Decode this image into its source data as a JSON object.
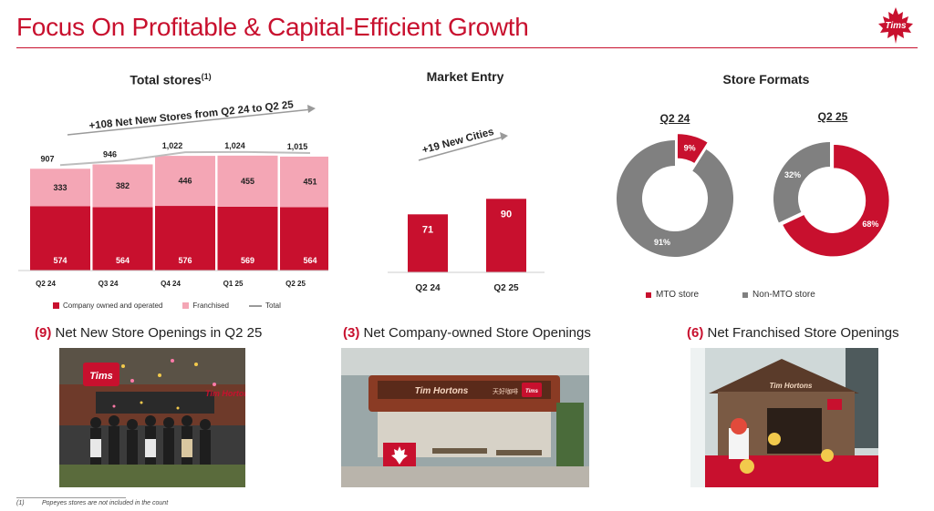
{
  "header": {
    "title": "Focus On Profitable & Capital-Efficient Growth",
    "logo_text": "Tims"
  },
  "colors": {
    "accent": "#c8102e",
    "franchised": "#f4a6b5",
    "non_mto": "#808080",
    "total_line": "#bdbdbd"
  },
  "total_stores": {
    "title": "Total stores",
    "footnote_marker": "(1)",
    "annotation": "+108 Net New Stores from Q2 24 to Q2 25",
    "legend": {
      "company": "Company owned and operated",
      "franchised": "Franchised",
      "total": "Total"
    }
  },
  "market_entry": {
    "title": "Market Entry",
    "annotation": "+19 New Cities"
  },
  "store_formats": {
    "title": "Store Formats",
    "left_label": "Q2 24",
    "right_label": "Q2 25",
    "left_mto": "9%",
    "left_non_mto": "91%",
    "right_mto": "68%",
    "right_non_mto": "32%",
    "legend_mto": "MTO store",
    "legend_non_mto": "Non-MTO store"
  },
  "openings": [
    {
      "num": "(9)",
      "text": " Net New Store Openings in Q2 25"
    },
    {
      "num": "(3)",
      "text": " Net Company-owned Store Openings"
    },
    {
      "num": "(6)",
      "text": " Net Franchised Store Openings"
    }
  ],
  "photos": {
    "photo1_sign": "Tims",
    "photo1_brand": "Tim Hortons",
    "photo2_brand": "Tim Hortons",
    "photo2_cn": "天好咖啡",
    "photo2_sign": "Tims",
    "photo3_brand": "Tim Hortons"
  },
  "footnote": {
    "marker": "(1)",
    "text": "Popeyes stores are not included in the count"
  },
  "chart_data": [
    {
      "type": "bar",
      "stacked": true,
      "title": "Total stores",
      "categories": [
        "Q2 24",
        "Q3 24",
        "Q4 24",
        "Q1 25",
        "Q2 25"
      ],
      "series": [
        {
          "name": "Company owned and operated",
          "values": [
            574,
            564,
            576,
            569,
            564
          ]
        },
        {
          "name": "Franchised",
          "values": [
            333,
            382,
            446,
            455,
            451
          ]
        }
      ],
      "totals": [
        907,
        946,
        1022,
        1024,
        1015
      ],
      "total_labels": [
        "907",
        "946",
        "1,022",
        "1,024",
        "1,015"
      ],
      "line_series": "Total",
      "ylim": [
        0,
        1150
      ],
      "legend": "bottom"
    },
    {
      "type": "bar",
      "title": "Market Entry",
      "categories": [
        "Q2 24",
        "Q2 25"
      ],
      "values": [
        71,
        90
      ],
      "ylim": [
        0,
        110
      ]
    },
    {
      "type": "pie",
      "donut": true,
      "title": "Q2 24",
      "labels": [
        "MTO store",
        "Non-MTO store"
      ],
      "values": [
        9,
        91
      ]
    },
    {
      "type": "pie",
      "donut": true,
      "title": "Q2 25",
      "labels": [
        "MTO store",
        "Non-MTO store"
      ],
      "values": [
        68,
        32
      ]
    }
  ]
}
